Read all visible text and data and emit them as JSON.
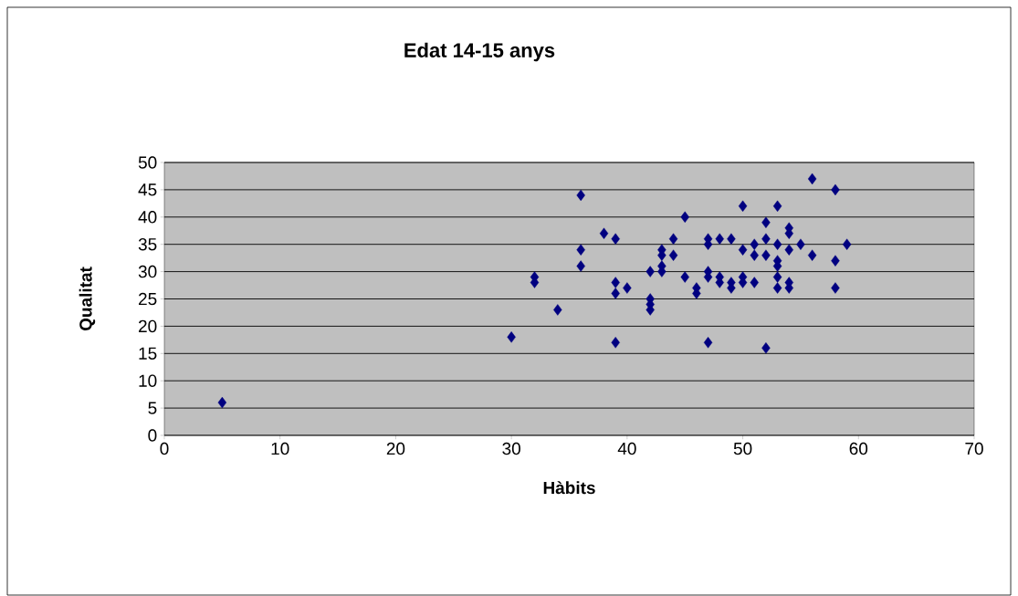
{
  "chart_data": {
    "type": "scatter",
    "title": "Edat 14-15 anys",
    "xlabel": "Hàbits",
    "ylabel": "Qualitat",
    "x": [
      5,
      30,
      32,
      32,
      34,
      36,
      36,
      36,
      38,
      39,
      39,
      39,
      39,
      40,
      42,
      42,
      42,
      42,
      43,
      43,
      43,
      43,
      44,
      44,
      45,
      45,
      46,
      46,
      47,
      47,
      47,
      47,
      47,
      48,
      48,
      48,
      49,
      49,
      49,
      50,
      50,
      50,
      50,
      51,
      51,
      51,
      52,
      52,
      52,
      52,
      53,
      53,
      53,
      53,
      53,
      53,
      54,
      54,
      54,
      54,
      54,
      55,
      56,
      56,
      58,
      58,
      58,
      59
    ],
    "values": [
      6,
      18,
      29,
      28,
      23,
      44,
      34,
      31,
      37,
      36,
      28,
      26,
      17,
      27,
      30,
      25,
      24,
      23,
      34,
      33,
      31,
      30,
      36,
      33,
      40,
      29,
      27,
      26,
      36,
      35,
      30,
      29,
      17,
      36,
      29,
      28,
      36,
      28,
      27,
      42,
      34,
      29,
      28,
      35,
      33,
      28,
      39,
      36,
      33,
      16,
      42,
      35,
      32,
      31,
      29,
      27,
      38,
      37,
      34,
      28,
      27,
      35,
      47,
      33,
      45,
      32,
      27,
      35
    ],
    "color": "#000080",
    "marker": "diamond",
    "grid": "y",
    "xlim": [
      0,
      70
    ],
    "xticks": [
      0,
      10,
      20,
      30,
      40,
      50,
      60,
      70
    ],
    "ylim": [
      0,
      50
    ],
    "yticks": [
      0,
      5,
      10,
      15,
      20,
      25,
      30,
      35,
      40,
      45,
      50
    ]
  }
}
